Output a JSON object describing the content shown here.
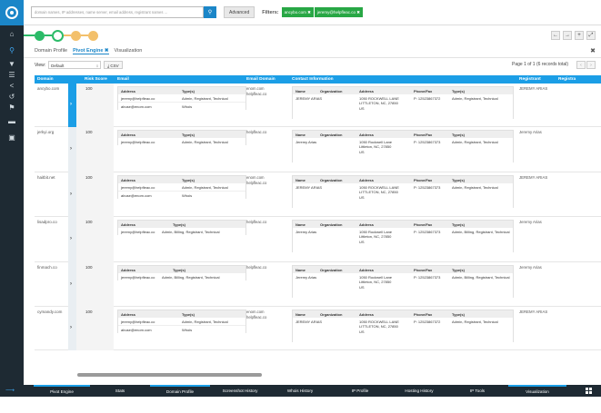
{
  "search": {
    "placeholder": "domain names, IP addresses, name server, email address, registrant names ..."
  },
  "toolbar": {
    "advanced_label": "Advanced",
    "filters_label": "Filters:"
  },
  "filters": [
    {
      "label": "ancybo.com"
    },
    {
      "label": "jeremy@helpfleac.co"
    }
  ],
  "tabs": [
    {
      "label": "Domain Profile"
    },
    {
      "label": "Pivot Engine"
    },
    {
      "label": "Visualization"
    }
  ],
  "view": {
    "label": "View:",
    "selected": "Default",
    "csv_label": "CSV"
  },
  "pagination": {
    "text": "Page 1 of 1 (6 records total)"
  },
  "columns": [
    "Domain",
    "Risk Score",
    "Email",
    "Email Domain",
    "Contact Information",
    "Registrant",
    "Registra"
  ],
  "email_box": {
    "h_address": "Address",
    "h_types": "Type(s)"
  },
  "contact_box": {
    "h_name": "Name",
    "h_org": "Organization",
    "h_address": "Address",
    "h_phone": "Phone/Fax",
    "h_types": "Type(s)"
  },
  "rows": [
    {
      "domain": "ancybo.com",
      "risk": "100",
      "emails": [
        {
          "address": "jeremy@helpfleac.co",
          "types": "Admin, Registrant, Technical"
        },
        {
          "address": "abuse@enom.com",
          "types": "Whois"
        }
      ],
      "email_domain_1": "enom.com",
      "email_domain_2": "helpfleac.co",
      "contact": {
        "name": "JEREMY ARIAS",
        "org": "",
        "address": "1050 ROCKWELL LANE\nLITTLETON, NC, 27850\nUS",
        "phone": "P: 12523867372",
        "types": "Admin, Registrant, Technical"
      },
      "registrant": "JEREMY ARIAS"
    },
    {
      "domain": "jerkyi.org",
      "risk": "100",
      "emails": [
        {
          "address": "jeremy@helpfleac.co",
          "types": "Admin, Registrant, Technical"
        }
      ],
      "email_domain_1": "helpfleac.co",
      "email_domain_2": "",
      "contact": {
        "name": "Jeremy Arias",
        "org": "",
        "address": "1050 Rockwell Lane\nLittleton, NC, 27850\nUS",
        "phone": "P: 12523867373",
        "types": "Admin, Registrant, Technical"
      },
      "registrant": "Jeremy Arias"
    },
    {
      "domain": "haitbit.net",
      "risk": "100",
      "emails": [
        {
          "address": "jeremy@helpfleac.co",
          "types": "Admin, Registrant, Technical"
        },
        {
          "address": "abuse@enom.com",
          "types": "Whois"
        }
      ],
      "email_domain_1": "enom.com",
      "email_domain_2": "helpfleac.co",
      "contact": {
        "name": "JEREMY ARIAS",
        "org": "",
        "address": "1050 ROCKWELL LANE\nLITTLETON, NC, 27850\nUS",
        "phone": "P: 12523867373",
        "types": "Admin, Registrant, Technical"
      },
      "registrant": "JEREMY ARIAS"
    },
    {
      "domain": "lisadpro.co",
      "risk": "100",
      "emails": [
        {
          "address": "jeremy@helpfleac.co",
          "types": "Admin, Billing, Registrant, Technical"
        }
      ],
      "email_domain_1": "helpfleac.co",
      "email_domain_2": "",
      "contact": {
        "name": "Jeremy Arias",
        "org": "",
        "address": "1050 Rockwell Lane\nLittleton, NC, 27850\nUS",
        "phone": "P: 12523867373",
        "types": "Admin, Billing, Registrant, Technical"
      },
      "registrant": "Jeremy Arias"
    },
    {
      "domain": "finmach.co",
      "risk": "100",
      "emails": [
        {
          "address": "jeremy@helpfleac.co",
          "types": "Admin, Billing, Registrant, Technical"
        }
      ],
      "email_domain_1": "helpfleac.co",
      "email_domain_2": "",
      "contact": {
        "name": "Jeremy Arias",
        "org": "",
        "address": "1050 Rockwell Lane\nLittleton, NC, 27850\nUS",
        "phone": "P: 12523867373",
        "types": "Admin, Billing, Registrant, Technical"
      },
      "registrant": "Jeremy Arias"
    },
    {
      "domain": "cymandy.com",
      "risk": "100",
      "emails": [
        {
          "address": "jeremy@helpfleac.co",
          "types": "Admin, Registrant, Technical"
        },
        {
          "address": "abuse@enom.com",
          "types": "Whois"
        }
      ],
      "email_domain_1": "enom.com",
      "email_domain_2": "helpfleac.co",
      "contact": {
        "name": "JEREMY ARIAS",
        "org": "",
        "address": "1050 ROCKWELL LANE\nLITTLETON, NC, 27850\nUS",
        "phone": "P: 12523867372",
        "types": "Admin, Registrant, Technical"
      },
      "registrant": "JEREMY ARIAS"
    }
  ],
  "dock": [
    "Pivot Engine",
    "Stats",
    "Domain Profile",
    "Screenshot History",
    "Whois History",
    "IP Profile",
    "Hosting History",
    "IP Tools",
    "Visualization"
  ],
  "colors": {
    "accent": "#1b9ee6",
    "rail": "#1e2a33",
    "filter_chip": "#28a745",
    "step_done": "#2bbb68",
    "step_pending": "#f3c06b"
  }
}
